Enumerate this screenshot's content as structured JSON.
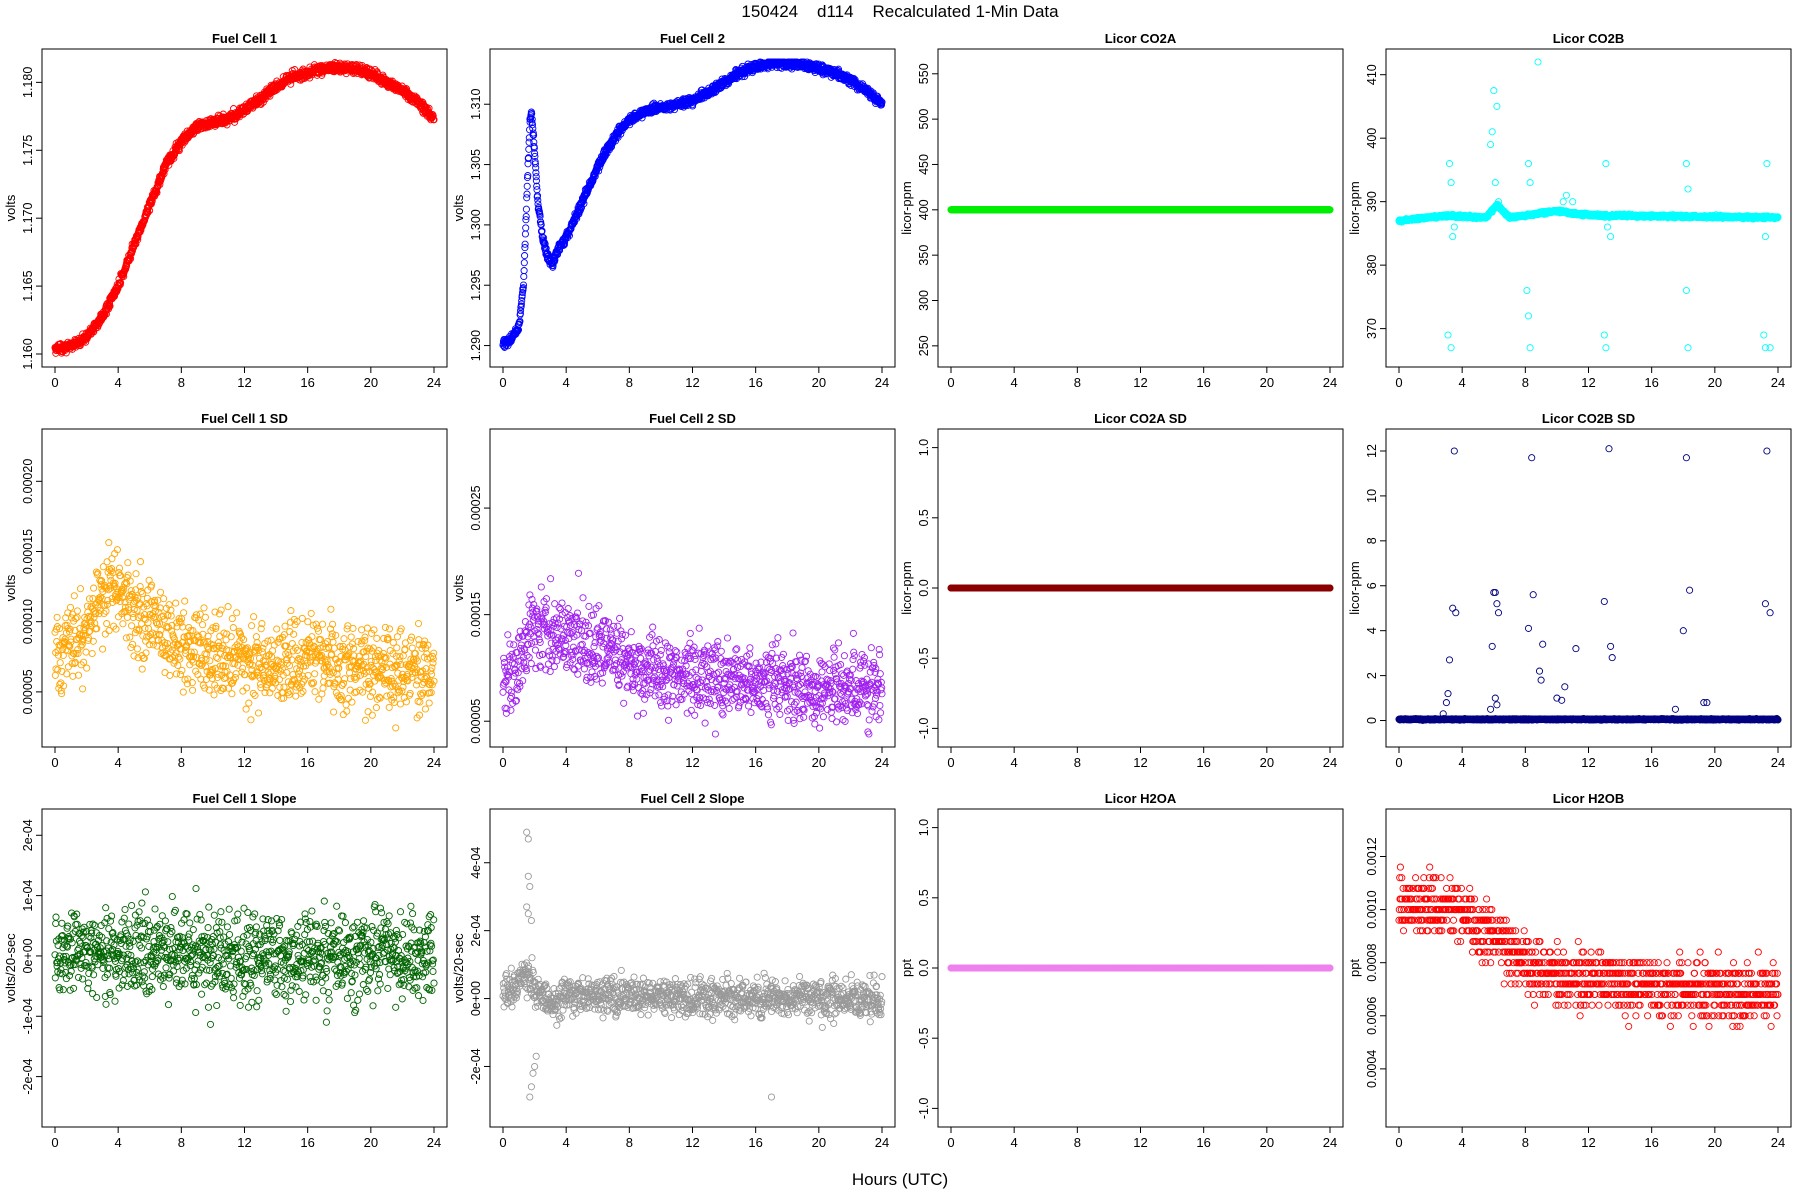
{
  "page": {
    "title": "150424    d114    Recalculated 1-Min Data",
    "xlabel": "Hours (UTC)"
  },
  "chart_data": [
    {
      "type": "scatter",
      "title": "Fuel Cell 1",
      "xlabel": "",
      "ylabel": "volts",
      "color": "#ff0000",
      "xlim": [
        0,
        24
      ],
      "ylim": [
        1.16,
        1.1815
      ],
      "xticks": [
        0,
        4,
        8,
        12,
        16,
        20,
        24
      ],
      "yticks": [
        1.16,
        1.165,
        1.17,
        1.175,
        1.18
      ],
      "ytick_labels": [
        "1.160",
        "1.165",
        "1.170",
        "1.175",
        "1.180"
      ],
      "pattern": "curve",
      "noise": 0.00025,
      "thick": true,
      "x": [
        0,
        1,
        2,
        3,
        4,
        5,
        6,
        7,
        8,
        9,
        10,
        11,
        12,
        13,
        14,
        15,
        16,
        17,
        18,
        19,
        20,
        21,
        22,
        23,
        24
      ],
      "y": [
        1.1603,
        1.1606,
        1.1612,
        1.1627,
        1.165,
        1.168,
        1.171,
        1.1738,
        1.1757,
        1.1767,
        1.1771,
        1.1773,
        1.178,
        1.1788,
        1.1797,
        1.1804,
        1.1807,
        1.181,
        1.1811,
        1.181,
        1.1806,
        1.18,
        1.1794,
        1.1785,
        1.1773
      ]
    },
    {
      "type": "scatter",
      "title": "Fuel Cell 2",
      "xlabel": "",
      "ylabel": "volts",
      "color": "#0000ff",
      "xlim": [
        0,
        24
      ],
      "ylim": [
        1.2893,
        1.3135
      ],
      "xticks": [
        0,
        4,
        8,
        12,
        16,
        20,
        24
      ],
      "yticks": [
        1.29,
        1.295,
        1.3,
        1.305,
        1.31
      ],
      "ytick_labels": [
        "1.290",
        "1.295",
        "1.300",
        "1.305",
        "1.310"
      ],
      "pattern": "curve",
      "noise": 0.00025,
      "thick": true,
      "x": [
        0,
        0.5,
        1.0,
        1.3,
        1.5,
        1.7,
        1.8,
        2.0,
        2.2,
        2.5,
        2.8,
        3.1,
        3.5,
        4,
        5,
        6,
        7,
        8,
        9,
        10,
        11,
        12,
        13,
        14,
        15,
        16,
        17,
        18,
        19,
        20,
        21,
        22,
        23,
        24
      ],
      "y": [
        1.2902,
        1.2905,
        1.2915,
        1.295,
        1.302,
        1.3085,
        1.3095,
        1.306,
        1.302,
        1.299,
        1.2975,
        1.2968,
        1.298,
        1.299,
        1.3018,
        1.3048,
        1.3072,
        1.3087,
        1.3094,
        1.3097,
        1.31,
        1.3103,
        1.311,
        1.3118,
        1.3126,
        1.3131,
        1.3134,
        1.3134,
        1.3133,
        1.313,
        1.3126,
        1.312,
        1.3112,
        1.31
      ]
    },
    {
      "type": "scatter",
      "title": "Licor CO2A",
      "xlabel": "",
      "ylabel": "licor-ppm",
      "color": "#00ee00",
      "xlim": [
        0,
        24
      ],
      "ylim": [
        241,
        563
      ],
      "xticks": [
        0,
        4,
        8,
        12,
        16,
        20,
        24
      ],
      "yticks": [
        250,
        300,
        350,
        400,
        450,
        500,
        550
      ],
      "ytick_labels": [
        "250",
        "300",
        "350",
        "400",
        "450",
        "500",
        "550"
      ],
      "pattern": "flat",
      "noise": 0,
      "thick": true,
      "x": [
        0,
        24
      ],
      "y": [
        400,
        400
      ]
    },
    {
      "type": "scatter",
      "title": "Licor CO2B",
      "xlabel": "",
      "ylabel": "licor-ppm",
      "color": "#00ffff",
      "xlim": [
        0,
        24
      ],
      "ylim": [
        366,
        412
      ],
      "xticks": [
        0,
        4,
        8,
        12,
        16,
        20,
        24
      ],
      "yticks": [
        370,
        380,
        390,
        400,
        410
      ],
      "ytick_labels": [
        "370",
        "380",
        "390",
        "400",
        "410"
      ],
      "pattern": "flat",
      "noise": 0.15,
      "thick": true,
      "x": [
        0,
        3,
        5.5,
        6.2,
        7,
        10,
        11.5,
        13,
        24
      ],
      "y": [
        387.0,
        387.8,
        387.5,
        389.5,
        387.5,
        388.5,
        388.0,
        387.8,
        387.5
      ],
      "extra_points": [
        [
          3.2,
          396
        ],
        [
          3.3,
          393
        ],
        [
          3.5,
          386
        ],
        [
          3.4,
          384.5
        ],
        [
          3.1,
          369
        ],
        [
          3.3,
          367
        ],
        [
          5.8,
          399
        ],
        [
          5.9,
          401
        ],
        [
          6.0,
          407.5
        ],
        [
          6.2,
          405
        ],
        [
          6.1,
          393
        ],
        [
          6.3,
          390
        ],
        [
          8.2,
          396
        ],
        [
          8.3,
          393
        ],
        [
          8.1,
          376
        ],
        [
          8.2,
          372
        ],
        [
          8.3,
          367
        ],
        [
          8.8,
          414.5
        ],
        [
          10.4,
          390
        ],
        [
          10.6,
          391
        ],
        [
          11.0,
          390
        ],
        [
          13.1,
          396
        ],
        [
          13.2,
          386
        ],
        [
          13.4,
          384.5
        ],
        [
          13.0,
          369
        ],
        [
          13.1,
          367
        ],
        [
          18.2,
          396
        ],
        [
          18.3,
          392
        ],
        [
          18.2,
          376
        ],
        [
          18.3,
          367
        ],
        [
          23.3,
          396
        ],
        [
          23.2,
          384.5
        ],
        [
          23.1,
          369
        ],
        [
          23.2,
          367
        ],
        [
          23.5,
          367
        ]
      ]
    },
    {
      "type": "scatter",
      "title": "Fuel Cell 1 SD",
      "xlabel": "",
      "ylabel": "volts",
      "color": "#ffa500",
      "xlim": [
        0,
        24
      ],
      "ylim": [
        2e-05,
        0.000228
      ],
      "xticks": [
        0,
        4,
        8,
        12,
        16,
        20,
        24
      ],
      "yticks": [
        5e-05,
        0.0001,
        0.00015,
        0.0002
      ],
      "ytick_labels": [
        "0.00005",
        "0.00010",
        "0.00015",
        "0.00020"
      ],
      "pattern": "noise",
      "noise": 2.2e-05,
      "x": [
        0,
        1,
        2,
        2.5,
        3,
        4,
        5,
        6,
        7,
        8,
        10,
        12,
        14,
        16,
        18,
        20,
        22,
        24
      ],
      "y": [
        7.2e-05,
        8e-05,
        9.5e-05,
        0.00011,
        0.00012,
        0.000125,
        0.00011,
        0.0001,
        9e-05,
        8.2e-05,
        7.5e-05,
        7.2e-05,
        7e-05,
        7e-05,
        6.8e-05,
        6.6e-05,
        6.5e-05,
        6.6e-05
      ]
    },
    {
      "type": "scatter",
      "title": "Fuel Cell 2 SD",
      "xlabel": "",
      "ylabel": "volts",
      "color": "#a020f0",
      "xlim": [
        0,
        24
      ],
      "ylim": [
        3.8e-05,
        0.000312
      ],
      "xticks": [
        0,
        4,
        8,
        12,
        16,
        20,
        24
      ],
      "yticks": [
        5e-05,
        0.00015,
        0.00025
      ],
      "ytick_labels": [
        "0.00005",
        "0.00015",
        "0.00025"
      ],
      "pattern": "noise",
      "noise": 2.5e-05,
      "x": [
        0,
        1,
        1.5,
        2,
        3,
        4,
        5,
        6,
        7,
        8,
        10,
        12,
        14,
        16,
        18,
        20,
        22,
        24
      ],
      "y": [
        9e-05,
        0.000105,
        0.000125,
        0.00014,
        0.000135,
        0.00013,
        0.000125,
        0.00012,
        0.000112,
        0.000105,
        9.5e-05,
        9.2e-05,
        9e-05,
        8.8e-05,
        8.6e-05,
        8.2e-05,
        8.2e-05,
        8.5e-05
      ]
    },
    {
      "type": "scatter",
      "title": "Licor CO2A SD",
      "xlabel": "",
      "ylabel": "licor-ppm",
      "color": "#8b0000",
      "xlim": [
        0,
        24
      ],
      "ylim": [
        -1.04,
        1.04
      ],
      "xticks": [
        0,
        4,
        8,
        12,
        16,
        20,
        24
      ],
      "yticks": [
        -1.0,
        -0.5,
        0.0,
        0.5,
        1.0
      ],
      "ytick_labels": [
        "-1.0",
        "-0.5",
        "0.0",
        "0.5",
        "1.0"
      ],
      "pattern": "flat",
      "noise": 0,
      "thick": true,
      "x": [
        0,
        24
      ],
      "y": [
        0,
        0
      ]
    },
    {
      "type": "scatter",
      "title": "Licor CO2B SD",
      "xlabel": "",
      "ylabel": "licor-ppm",
      "color": "#000080",
      "xlim": [
        0,
        24
      ],
      "ylim": [
        -0.6,
        12.4
      ],
      "xticks": [
        0,
        4,
        8,
        12,
        16,
        20,
        24
      ],
      "yticks": [
        0,
        2,
        4,
        6,
        8,
        10,
        12
      ],
      "ytick_labels": [
        "0",
        "2",
        "4",
        "6",
        "8",
        "10",
        "12"
      ],
      "pattern": "flat",
      "noise": 0.02,
      "thick": true,
      "x": [
        0,
        24
      ],
      "y": [
        0.05,
        0.05
      ],
      "extra_points": [
        [
          2.8,
          0.3
        ],
        [
          3.0,
          0.8
        ],
        [
          3.1,
          1.2
        ],
        [
          3.2,
          2.7
        ],
        [
          3.4,
          5.0
        ],
        [
          3.5,
          12.0
        ],
        [
          3.6,
          4.8
        ],
        [
          5.8,
          0.5
        ],
        [
          5.9,
          3.3
        ],
        [
          6.0,
          5.7
        ],
        [
          6.1,
          5.7
        ],
        [
          6.2,
          5.2
        ],
        [
          6.3,
          4.8
        ],
        [
          6.1,
          1.0
        ],
        [
          6.2,
          0.7
        ],
        [
          8.2,
          4.1
        ],
        [
          8.4,
          11.7
        ],
        [
          8.5,
          5.6
        ],
        [
          8.9,
          2.2
        ],
        [
          9.0,
          1.8
        ],
        [
          9.1,
          3.4
        ],
        [
          10.0,
          1.0
        ],
        [
          10.3,
          0.9
        ],
        [
          10.5,
          1.5
        ],
        [
          11.2,
          3.2
        ],
        [
          13.0,
          5.3
        ],
        [
          13.3,
          12.1
        ],
        [
          13.4,
          3.3
        ],
        [
          13.5,
          2.8
        ],
        [
          17.5,
          0.5
        ],
        [
          18.0,
          4.0
        ],
        [
          18.2,
          11.7
        ],
        [
          18.4,
          5.8
        ],
        [
          19.3,
          0.8
        ],
        [
          19.5,
          0.8
        ],
        [
          23.2,
          5.2
        ],
        [
          23.3,
          12.0
        ],
        [
          23.5,
          4.8
        ]
      ]
    },
    {
      "type": "scatter",
      "title": "Fuel Cell 1 Slope",
      "xlabel": "",
      "ylabel": "volts/20-sec",
      "color": "#006400",
      "xlim": [
        0,
        24
      ],
      "ylim": [
        -0.000262,
        0.000222
      ],
      "xticks": [
        0,
        4,
        8,
        12,
        16,
        20,
        24
      ],
      "yticks": [
        -0.0002,
        -0.0001,
        0,
        0.0001,
        0.0002
      ],
      "ytick_labels": [
        "-2e-04",
        "-1e-04",
        "0e+00",
        "1e-04",
        "2e-04"
      ],
      "pattern": "noise",
      "noise": 5e-05,
      "x": [
        0,
        4,
        8,
        12,
        16,
        20,
        24
      ],
      "y": [
        5e-06,
        8e-06,
        5e-06,
        2e-06,
        3e-06,
        2e-06,
        1e-06
      ]
    },
    {
      "type": "scatter",
      "title": "Fuel Cell 2 Slope",
      "xlabel": "",
      "ylabel": "volts/20-sec",
      "color": "#999999",
      "xlim": [
        0,
        24
      ],
      "ylim": [
        -0.00034,
        0.00052
      ],
      "xticks": [
        0,
        4,
        8,
        12,
        16,
        20,
        24
      ],
      "yticks": [
        -0.0002,
        0,
        0.0002,
        0.0004
      ],
      "ytick_labels": [
        "-2e-04",
        "0e+00",
        "2e-04",
        "4e-04"
      ],
      "pattern": "noise",
      "noise": 4e-05,
      "x": [
        0,
        1,
        1.5,
        2,
        3,
        4,
        8,
        12,
        16,
        20,
        24
      ],
      "y": [
        2e-05,
        4e-05,
        8e-05,
        2e-05,
        -2e-05,
        1e-05,
        5e-06,
        5e-06,
        2e-06,
        0.0,
        0.0
      ],
      "extra_points": [
        [
          1.5,
          0.00049
        ],
        [
          1.6,
          0.00047
        ],
        [
          1.6,
          0.00036
        ],
        [
          1.7,
          0.00033
        ],
        [
          1.5,
          0.00027
        ],
        [
          1.6,
          0.00025
        ],
        [
          1.8,
          0.00023
        ],
        [
          1.7,
          -0.00029
        ],
        [
          1.8,
          -0.00026
        ],
        [
          1.9,
          -0.00022
        ],
        [
          2.0,
          -0.0002
        ],
        [
          2.1,
          -0.00017
        ],
        [
          17.0,
          -0.00029
        ]
      ]
    },
    {
      "type": "scatter",
      "title": "Licor H2OA",
      "xlabel": "",
      "ylabel": "ppt",
      "color": "#ee82ee",
      "xlim": [
        0,
        24
      ],
      "ylim": [
        -1.04,
        1.04
      ],
      "xticks": [
        0,
        4,
        8,
        12,
        16,
        20,
        24
      ],
      "yticks": [
        -1.0,
        -0.5,
        0.0,
        0.5,
        1.0
      ],
      "ytick_labels": [
        "-1.0",
        "-0.5",
        "0.0",
        "0.5",
        "1.0"
      ],
      "pattern": "flat",
      "noise": 0,
      "thick": true,
      "x": [
        0,
        24
      ],
      "y": [
        0,
        0
      ]
    },
    {
      "type": "scatter",
      "title": "Licor H2OB",
      "xlabel": "",
      "ylabel": "ppt",
      "color": "#ff0000",
      "xlim": [
        0,
        24
      ],
      "ylim": [
        0.00023,
        0.00133
      ],
      "xticks": [
        0,
        4,
        8,
        12,
        16,
        20,
        24
      ],
      "yticks": [
        0.0004,
        0.0006,
        0.0008,
        0.001,
        0.0012
      ],
      "ytick_labels": [
        "0.0004",
        "0.0006",
        "0.0008",
        "0.0010",
        "0.0012"
      ],
      "pattern": "noise",
      "noise": 8e-05,
      "quantize": 4e-05,
      "x": [
        0,
        2,
        4,
        6,
        8,
        10,
        12,
        14,
        16,
        18,
        20,
        22,
        24
      ],
      "y": [
        0.00103,
        0.00101,
        0.00097,
        0.0009,
        0.00079,
        0.00075,
        0.00073,
        0.00072,
        0.00071,
        0.0007,
        0.00068,
        0.00068,
        0.0007
      ]
    }
  ]
}
